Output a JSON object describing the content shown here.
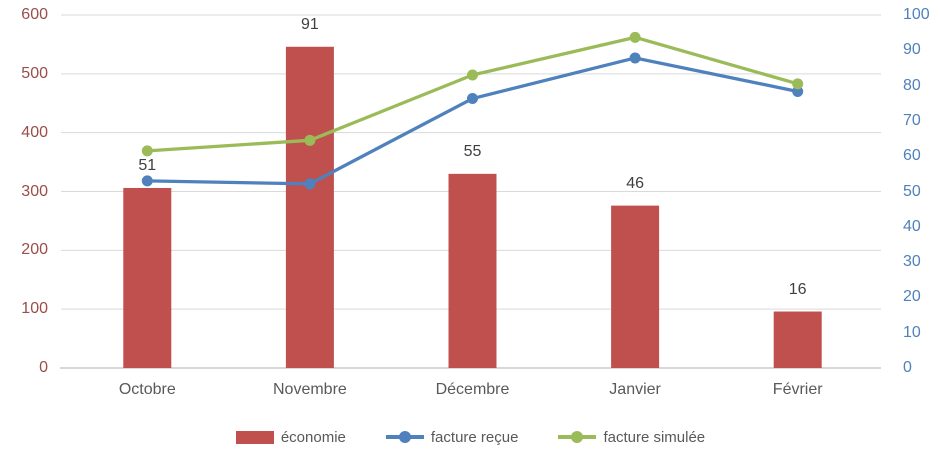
{
  "chart_data": {
    "type": "combo-bar-line",
    "title": "",
    "categories": [
      "Octobre",
      "Novembre",
      "Décembre",
      "Janvier",
      "Février"
    ],
    "bar_series": {
      "name": "économie",
      "axis": "right",
      "color": "#C0504D",
      "values": [
        51,
        91,
        55,
        46,
        16
      ],
      "data_labels": [
        "51",
        "91",
        "55",
        "46",
        "16"
      ]
    },
    "line_series": [
      {
        "name": "facture reçue",
        "axis": "left",
        "color": "#4F81BD",
        "values": [
          318,
          313,
          458,
          527,
          470
        ]
      },
      {
        "name": "facture simulée",
        "axis": "left",
        "color": "#9BBB59",
        "values": [
          369,
          387,
          498,
          562,
          483
        ]
      }
    ],
    "left_axis": {
      "min": 0,
      "max": 600,
      "tick_step": 100,
      "ticks": [
        0,
        100,
        200,
        300,
        400,
        500,
        600
      ],
      "color": "#9A4D49"
    },
    "right_axis": {
      "min": 0,
      "max": 100,
      "tick_step": 10,
      "ticks": [
        0,
        10,
        20,
        30,
        40,
        50,
        60,
        70,
        80,
        90,
        100
      ],
      "color": "#4F81BD"
    },
    "grid": {
      "show_horizontal": true,
      "color": "#D9D9D9",
      "axis_line_color": "#BFBFBF"
    },
    "legend": {
      "position": "bottom",
      "items": [
        {
          "label": "économie",
          "marker": "bar",
          "color": "#C0504D"
        },
        {
          "label": "facture reçue",
          "marker": "line",
          "color": "#4F81BD"
        },
        {
          "label": "facture simulée",
          "marker": "line",
          "color": "#9BBB59"
        }
      ]
    },
    "text_colors": {
      "category": "#595959",
      "data_label": "#404040",
      "legend": "#595959"
    }
  }
}
